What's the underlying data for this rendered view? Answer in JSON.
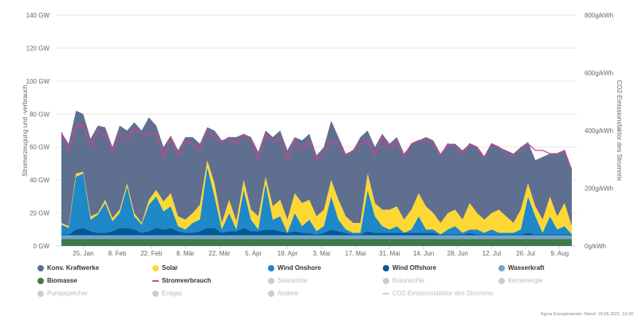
{
  "chart_data": {
    "type": "area",
    "stacked": true,
    "ylabel": "Stromerzeugung und -verbrauch",
    "ylabel_right": "CO2-Emissionsfaktor des Strommix",
    "ylim": [
      0,
      140
    ],
    "ylim_right": [
      0,
      800
    ],
    "yticks": [
      "0 GW",
      "20 GW",
      "40 GW",
      "60 GW",
      "80 GW",
      "100 GW",
      "120 GW",
      "140 GW"
    ],
    "yticks_right": [
      "0g/kWh",
      "200g/kWh",
      "400g/kWh",
      "600g/kWh",
      "800g/kWh"
    ],
    "grid": true,
    "x_unit": "day of year 2021",
    "x_start": 16,
    "x_step": 3,
    "xlim": [
      16,
      226
    ],
    "xticks": [
      {
        "day": 25,
        "label": "25. Jan"
      },
      {
        "day": 39,
        "label": "8. Feb"
      },
      {
        "day": 53,
        "label": "22. Feb"
      },
      {
        "day": 67,
        "label": "8. Mär"
      },
      {
        "day": 81,
        "label": "22. Mär"
      },
      {
        "day": 95,
        "label": "5. Apr"
      },
      {
        "day": 109,
        "label": "19. Apr"
      },
      {
        "day": 123,
        "label": "3. Mai"
      },
      {
        "day": 137,
        "label": "17. Mai"
      },
      {
        "day": 151,
        "label": "31. Mai"
      },
      {
        "day": 165,
        "label": "14. Jun"
      },
      {
        "day": 179,
        "label": "28. Jun"
      },
      {
        "day": 193,
        "label": "12. Jul"
      },
      {
        "day": 207,
        "label": "26. Jul"
      },
      {
        "day": 221,
        "label": "9. Aug"
      }
    ],
    "series": [
      {
        "name": "Biomasse",
        "color": "#3f7a4a",
        "values": "const",
        "value": 4.3
      },
      {
        "name": "Wasserkraft",
        "color": "#74a4cc",
        "values": "const",
        "value": 2.2
      },
      {
        "name": "Wind Offshore",
        "color": "#005a96",
        "values": [
          0.5,
          0.5,
          3.5,
          4.5,
          2.5,
          1.5,
          1.5,
          2.5,
          4.5,
          4.5,
          3.5,
          1.5,
          2.5,
          4.5,
          3.5,
          4.5,
          2.5,
          1.5,
          1.5,
          2.5,
          4.5,
          4.5,
          1.5,
          2.5,
          2.5,
          4.5,
          2.5,
          2.5,
          3.5,
          3.5,
          2.5,
          1.5,
          2.5,
          1.5,
          1.5,
          0.5,
          1.5,
          3.5,
          2.5,
          1.5,
          0.5,
          0.5,
          2.5,
          1.5,
          1.5,
          1.5,
          1.5,
          1.5,
          1.5,
          1.5,
          1.5,
          1.5,
          0.5,
          0.5,
          0.5,
          0.5,
          1.5,
          0.5,
          0.5,
          0.5,
          0.5,
          0.5,
          0.5,
          0.5,
          1.5,
          0.5,
          0.5,
          0.5,
          0.5,
          0.5,
          0.5
        ]
      },
      {
        "name": "Wind Onshore",
        "color": "#1e88c8",
        "values": [
          6,
          4,
          32,
          33,
          7,
          11,
          18,
          6,
          9,
          25,
          8,
          5,
          16,
          19,
          11,
          13,
          3,
          2,
          6,
          7,
          37,
          19,
          2,
          11,
          1,
          23,
          7,
          1,
          28,
          6,
          9,
          0,
          11,
          4,
          8,
          2,
          4,
          20,
          7,
          2,
          1,
          1,
          25,
          10,
          4,
          2,
          4,
          0,
          2,
          10,
          2,
          2,
          0,
          3,
          5,
          1,
          2,
          3,
          1,
          3,
          1,
          1,
          1,
          3,
          22,
          11,
          1,
          11,
          3,
          5,
          0
        ]
      },
      {
        "name": "Solar",
        "color": "#fdd835",
        "values": [
          1,
          1,
          2,
          1,
          2,
          1,
          2,
          2,
          2,
          2,
          2,
          1,
          3,
          4,
          6,
          8,
          6,
          6,
          6,
          9,
          4,
          8,
          4,
          8,
          5,
          6,
          6,
          8,
          4,
          8,
          10,
          8,
          12,
          14,
          12,
          9,
          10,
          10,
          12,
          8,
          6,
          6,
          10,
          8,
          10,
          12,
          12,
          8,
          12,
          14,
          14,
          10,
          7,
          10,
          10,
          8,
          16,
          10,
          8,
          10,
          14,
          10,
          6,
          12,
          8,
          6,
          8,
          12,
          8,
          14,
          5
        ]
      },
      {
        "name": "Konv. Kraftwerke",
        "color": "#5f6f8f",
        "values": [
          55,
          50,
          38,
          35,
          47,
          53,
          44,
          43,
          51,
          32,
          55,
          56,
          50,
          39,
          33,
          35,
          40,
          50,
          46,
          37,
          20,
          32,
          50,
          38,
          51,
          28,
          44,
          39,
          28,
          42,
          42,
          42,
          34,
          38,
          40,
          37,
          38,
          36,
          38,
          38,
          44,
          52,
          26,
          34,
          46,
          40,
          42,
          40,
          40,
          32,
          42,
          44,
          42,
          42,
          40,
          42,
          36,
          40,
          38,
          42,
          38,
          40,
          42,
          38,
          25,
          28,
          38,
          26,
          38,
          32,
          34
        ]
      }
    ],
    "line_series": [
      {
        "name": "Stromverbrauch",
        "color": "#d6408f",
        "values": [
          69,
          58,
          72,
          73,
          60,
          70,
          67,
          57,
          68,
          64,
          71,
          68,
          68,
          68,
          54,
          66,
          55,
          64,
          62,
          58,
          70,
          66,
          63,
          66,
          62,
          67,
          64,
          53,
          68,
          63,
          66,
          52,
          64,
          58,
          64,
          52,
          56,
          64,
          62,
          55,
          58,
          62,
          64,
          55,
          66,
          58,
          64,
          54,
          62,
          64,
          64,
          62,
          55,
          62,
          60,
          56,
          62,
          60,
          54,
          62,
          60,
          56,
          54,
          58,
          62,
          58,
          58,
          56,
          56,
          58,
          46
        ]
      }
    ]
  },
  "legend": [
    {
      "label": "Konv. Kraftwerke",
      "color": "#5f6f8f",
      "active": true,
      "type": "dot"
    },
    {
      "label": "Solar",
      "color": "#fdd835",
      "active": true,
      "type": "dot"
    },
    {
      "label": "Wind Onshore",
      "color": "#1e88c8",
      "active": true,
      "type": "dot"
    },
    {
      "label": "Wind Offshore",
      "color": "#005a96",
      "active": true,
      "type": "dot"
    },
    {
      "label": "Wasserkraft",
      "color": "#74a4cc",
      "active": true,
      "type": "dot"
    },
    {
      "label": "Biomasse",
      "color": "#3f7a4a",
      "active": true,
      "type": "dot"
    },
    {
      "label": "Stromverbrauch",
      "color": "#d6408f",
      "active": true,
      "type": "line"
    },
    {
      "label": "Steinkohle",
      "color": "#cccccc",
      "active": false,
      "type": "dot"
    },
    {
      "label": "Braunkohle",
      "color": "#cccccc",
      "active": false,
      "type": "dot"
    },
    {
      "label": "Kernenergie",
      "color": "#cccccc",
      "active": false,
      "type": "dot"
    },
    {
      "label": "Pumpspeicher",
      "color": "#cccccc",
      "active": false,
      "type": "dot"
    },
    {
      "label": "Erdgas",
      "color": "#cccccc",
      "active": false,
      "type": "dot"
    },
    {
      "label": "Andere",
      "color": "#cccccc",
      "active": false,
      "type": "dot"
    },
    {
      "label": "CO2-Emissionsfaktor des Strommix",
      "color": "#cccccc",
      "active": false,
      "type": "line"
    }
  ],
  "footer": "Agora Energiewende; Stand: 15.08.2021, 13:20"
}
